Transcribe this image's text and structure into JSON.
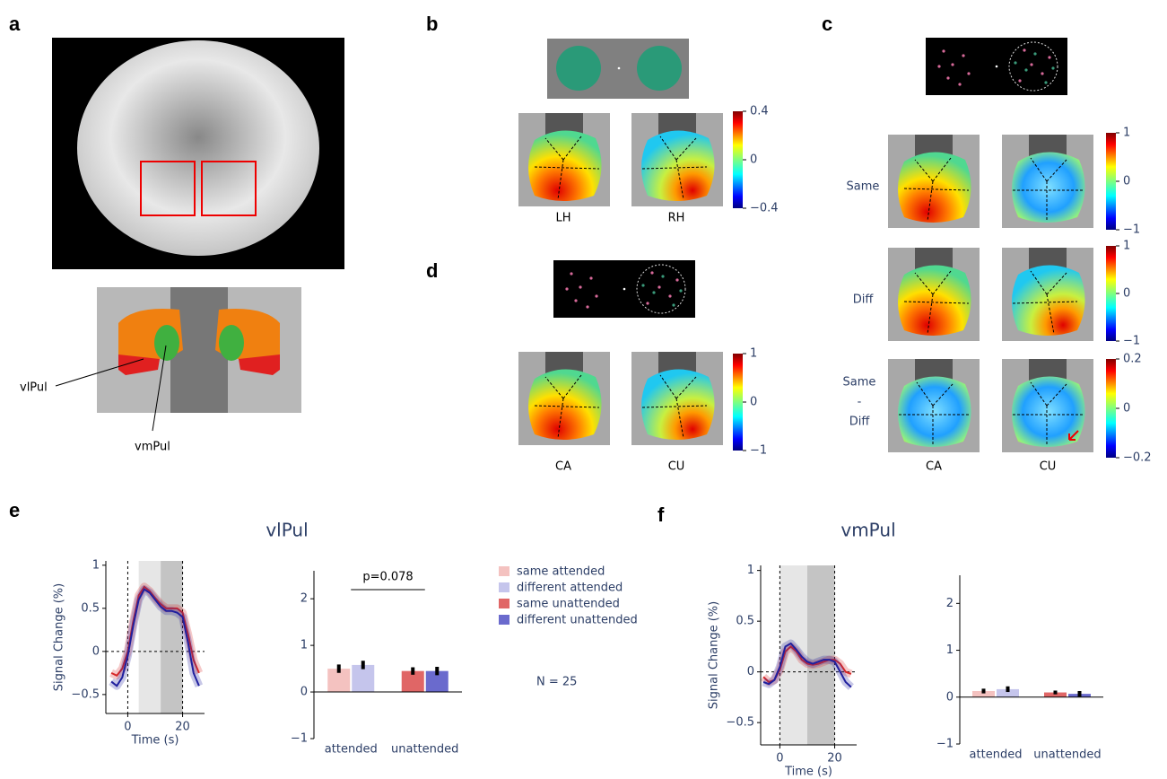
{
  "panel_labels": [
    "a",
    "b",
    "c",
    "d",
    "e",
    "f"
  ],
  "panel_a": {
    "labels": [
      "vlPul",
      "vmPul"
    ]
  },
  "panel_b": {
    "map_labels": [
      "LH",
      "RH"
    ]
  },
  "panel_c": {
    "row_labels": [
      "Same",
      "Diff"
    ],
    "contrast_label": [
      "Same",
      "-",
      "Diff"
    ],
    "map_labels": [
      "CA",
      "CU"
    ]
  },
  "panel_d": {
    "map_labels": [
      "CA",
      "CU"
    ]
  },
  "colorbars": [
    {
      "ylim": [
        -0.4,
        0.4
      ],
      "yticks": [
        {
          "value": 0.4,
          "label": "0.4"
        },
        0,
        {
          "value": -0.4,
          "label": "−0.4"
        }
      ]
    },
    {
      "ylim": [
        -1,
        1
      ],
      "yticks": [
        1,
        0,
        {
          "value": -1,
          "label": "−1"
        }
      ]
    },
    {
      "ylim": [
        -1,
        1
      ],
      "yticks": [
        1,
        0,
        {
          "value": -1,
          "label": "−1"
        }
      ]
    },
    {
      "ylim": [
        -0.2,
        0.2
      ],
      "yticks": [
        {
          "value": 0.2,
          "label": "0.2"
        },
        0,
        {
          "value": -0.2,
          "label": "−0.2"
        }
      ]
    },
    {
      "ylim": [
        -1,
        1
      ],
      "yticks": [
        1,
        0,
        {
          "value": -1,
          "label": "−1"
        }
      ]
    }
  ],
  "chart_data": [
    {
      "type": "line",
      "title": "vlPul",
      "x_label": "Time (s)",
      "y_label": "Signal Change (%)",
      "x": [
        -6,
        -4,
        -2,
        0,
        2,
        4,
        6,
        8,
        10,
        12,
        14,
        16,
        18,
        20,
        22,
        24,
        26
      ],
      "series": [
        {
          "color": "#d62728",
          "values": [
            -0.25,
            -0.28,
            -0.2,
            0.0,
            0.35,
            0.65,
            0.75,
            0.7,
            0.62,
            0.55,
            0.5,
            0.5,
            0.5,
            0.45,
            0.2,
            -0.1,
            -0.25
          ]
        },
        {
          "color": "#1f1f9e",
          "values": [
            -0.35,
            -0.4,
            -0.3,
            -0.05,
            0.3,
            0.6,
            0.72,
            0.68,
            0.6,
            0.52,
            0.47,
            0.47,
            0.45,
            0.4,
            0.1,
            -0.25,
            -0.4
          ]
        }
      ],
      "spans": [
        {
          "from": 4,
          "to": 12,
          "color": "#e6e6e6"
        },
        {
          "from": 12,
          "to": 20,
          "color": "#c4c4c4"
        }
      ],
      "vlines": [
        0,
        20
      ],
      "hline": 0,
      "xlim": [
        -8,
        28
      ],
      "xticks": [
        0,
        20
      ],
      "ylim": [
        -0.72,
        1.05
      ],
      "yticks": [
        {
          "value": -0.5,
          "label": "−0.5"
        },
        0,
        0.5,
        1
      ]
    },
    {
      "type": "bar",
      "categories": [
        "attended",
        "unattended"
      ],
      "series": [
        {
          "name": "same attended",
          "color": "#f4c2c0",
          "values": [
            0.5,
            null
          ],
          "errors": [
            0.09,
            null
          ]
        },
        {
          "name": "different attended",
          "color": "#c5c5ec",
          "values": [
            0.58,
            null
          ],
          "errors": [
            0.09,
            null
          ]
        },
        {
          "name": "same unattended",
          "color": "#e06666",
          "values": [
            null,
            0.45
          ],
          "errors": [
            null,
            0.08
          ]
        },
        {
          "name": "different unattended",
          "color": "#6a6acd",
          "values": [
            null,
            0.45
          ],
          "errors": [
            null,
            0.09
          ]
        }
      ],
      "annotation": "p=0.078",
      "note": "N = 25",
      "ylim": [
        -1,
        2.6
      ],
      "yticks": [
        {
          "value": -1,
          "label": "−1"
        },
        0,
        1,
        2
      ]
    },
    {
      "type": "line",
      "title": "vmPul",
      "x_label": "Time (s)",
      "y_label": "Signal Change (%)",
      "x": [
        -6,
        -4,
        -2,
        0,
        2,
        4,
        6,
        8,
        10,
        12,
        14,
        16,
        18,
        20,
        22,
        24,
        26
      ],
      "series": [
        {
          "color": "#d62728",
          "values": [
            -0.05,
            -0.1,
            -0.08,
            0.02,
            0.2,
            0.25,
            0.2,
            0.12,
            0.08,
            0.07,
            0.08,
            0.1,
            0.12,
            0.12,
            0.08,
            0.0,
            -0.02
          ]
        },
        {
          "color": "#1f1f9e",
          "values": [
            -0.1,
            -0.12,
            -0.08,
            0.05,
            0.25,
            0.28,
            0.22,
            0.15,
            0.1,
            0.08,
            0.1,
            0.12,
            0.12,
            0.1,
            0.0,
            -0.1,
            -0.15
          ]
        }
      ],
      "spans": [
        {
          "from": 0,
          "to": 10,
          "color": "#e6e6e6"
        },
        {
          "from": 10,
          "to": 20,
          "color": "#c4c4c4"
        }
      ],
      "vlines": [
        0,
        20
      ],
      "hline": 0,
      "xlim": [
        -7,
        28
      ],
      "xticks": [
        0,
        20
      ],
      "ylim": [
        -0.72,
        1.05
      ],
      "yticks": [
        {
          "value": -0.5,
          "label": "−0.5"
        },
        0,
        0.5,
        1
      ]
    },
    {
      "type": "bar",
      "categories": [
        "attended",
        "unattended"
      ],
      "series": [
        {
          "name": "same attended",
          "color": "#f4c2c0",
          "values": [
            0.13,
            null
          ],
          "errors": [
            0.05,
            null
          ]
        },
        {
          "name": "different attended",
          "color": "#c5c5ec",
          "values": [
            0.17,
            null
          ],
          "errors": [
            0.06,
            null
          ]
        },
        {
          "name": "same unattended",
          "color": "#e06666",
          "values": [
            null,
            0.1
          ],
          "errors": [
            null,
            0.04
          ]
        },
        {
          "name": "different unattended",
          "color": "#6a6acd",
          "values": [
            null,
            0.07
          ],
          "errors": [
            null,
            0.06
          ]
        }
      ],
      "ylim": [
        -1,
        2.6
      ],
      "yticks": [
        {
          "value": -1,
          "label": "−1"
        },
        0,
        1,
        2
      ]
    }
  ]
}
